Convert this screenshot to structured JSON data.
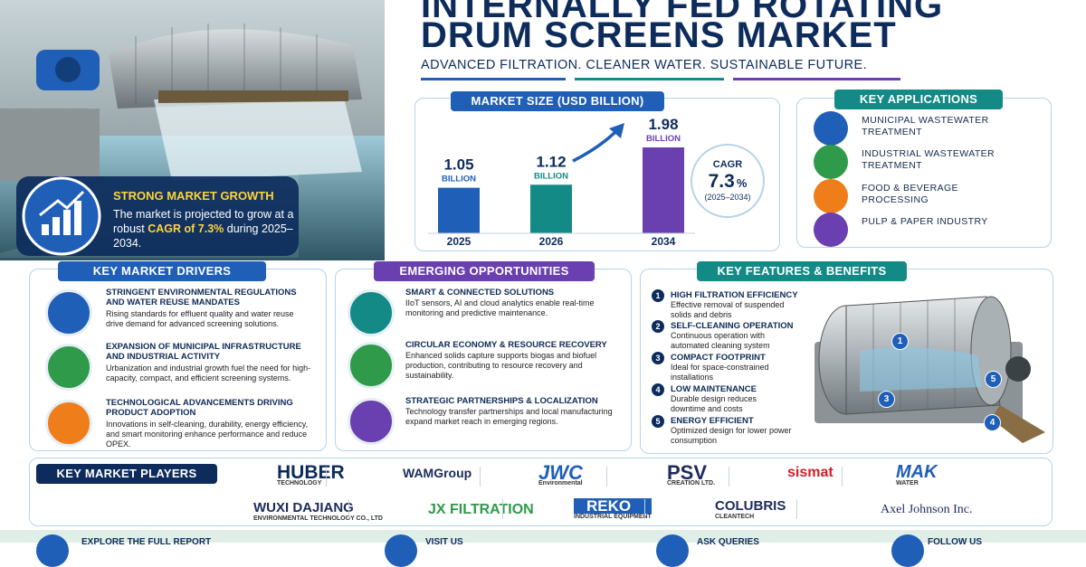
{
  "header": {
    "title_line1": "INTERNALLY FED ROTATING",
    "title_line2": "DRUM SCREENS MARKET",
    "tagline": "ADVANCED FILTRATION. CLEANER WATER. SUSTAINABLE FUTURE."
  },
  "growth": {
    "title": "STRONG MARKET GROWTH",
    "text_before": "The market is projected to grow at a robust",
    "highlight": "CAGR of 7.3%",
    "text_after": "during 2025–2034."
  },
  "chart_data": {
    "type": "bar",
    "title": "MARKET SIZE (USD BILLION)",
    "categories": [
      "2025",
      "2026",
      "2034"
    ],
    "values": [
      1.05,
      1.12,
      1.98
    ],
    "colors": [
      "#1f5fb8",
      "#138a86",
      "#6a3fb0"
    ],
    "unit_label": "BILLION",
    "cagr": {
      "label": "CAGR",
      "value": "7.3",
      "unit": "%",
      "period": "(2025–2034)"
    }
  },
  "applications": {
    "title": "KEY APPLICATIONS",
    "items": [
      "MUNICIPAL WASTEWATER TREATMENT",
      "INDUSTRIAL WASTEWATER TREATMENT",
      "FOOD & BEVERAGE PROCESSING",
      "PULP & PAPER INDUSTRY"
    ]
  },
  "drivers": {
    "title": "KEY MARKET DRIVERS",
    "items": [
      {
        "heading": "STRINGENT ENVIRONMENTAL REGULATIONS AND WATER REUSE MANDATES",
        "text": "Rising standards for effluent quality and water reuse drive demand for advanced screening solutions."
      },
      {
        "heading": "EXPANSION OF MUNICIPAL INFRASTRUCTURE AND INDUSTRIAL ACTIVITY",
        "text": "Urbanization and industrial growth fuel the need for high-capacity, compact, and efficient screening systems."
      },
      {
        "heading": "TECHNOLOGICAL ADVANCEMENTS DRIVING PRODUCT ADOPTION",
        "text": "Innovations in self-cleaning, durability, energy efficiency, and smart monitoring enhance performance and reduce OPEX."
      }
    ]
  },
  "opportunities": {
    "title": "EMERGING OPPORTUNITIES",
    "items": [
      {
        "heading": "SMART & CONNECTED SOLUTIONS",
        "text": "IIoT sensors, AI and cloud analytics enable real-time monitoring and predictive maintenance."
      },
      {
        "heading": "CIRCULAR ECONOMY & RESOURCE RECOVERY",
        "text": "Enhanced solids capture supports biogas and biofuel production, contributing to resource recovery and sustainability."
      },
      {
        "heading": "STRATEGIC PARTNERSHIPS & LOCALIZATION",
        "text": "Technology transfer partnerships and local manufacturing expand market reach in emerging regions."
      }
    ]
  },
  "features": {
    "title": "KEY FEATURES & BENEFITS",
    "items": [
      {
        "number": "1",
        "heading": "HIGH FILTRATION EFFICIENCY",
        "text": "Effective removal of suspended solids and debris"
      },
      {
        "number": "2",
        "heading": "SELF-CLEANING OPERATION",
        "text": "Continuous operation with automated cleaning system"
      },
      {
        "number": "3",
        "heading": "COMPACT FOOTPRINT",
        "text": "Ideal for space-constrained installations"
      },
      {
        "number": "4",
        "heading": "LOW MAINTENANCE",
        "text": "Durable design reduces downtime and costs"
      },
      {
        "number": "5",
        "heading": "ENERGY EFFICIENT",
        "text": "Optimized design for lower power consumption"
      }
    ]
  },
  "players": {
    "title": "KEY MARKET PLAYERS",
    "logos": [
      {
        "name": "HUBER",
        "sub": "TECHNOLOGY"
      },
      {
        "name": "WAMGroup"
      },
      {
        "name": "JWC",
        "sub": "Environmental"
      },
      {
        "name": "PSV",
        "sub": "CREATION LTD."
      },
      {
        "name": "sismat"
      },
      {
        "name": "MAK",
        "sub": "WATER"
      },
      {
        "name": "WUXI DAJIANG",
        "sub": "ENVIRONMENTAL TECHNOLOGY CO., LTD"
      },
      {
        "name": "JX FILTRATION"
      },
      {
        "name": "REKO",
        "sub": "INDUSTRIAL EQUIPMENT"
      },
      {
        "name": "COLUBRIS",
        "sub": "CLEANTECH"
      },
      {
        "name": "Axel Johnson Inc."
      }
    ]
  },
  "footer": [
    "EXPLORE THE FULL REPORT",
    "VISIT US",
    "ASK QUERIES",
    "FOLLOW US"
  ]
}
